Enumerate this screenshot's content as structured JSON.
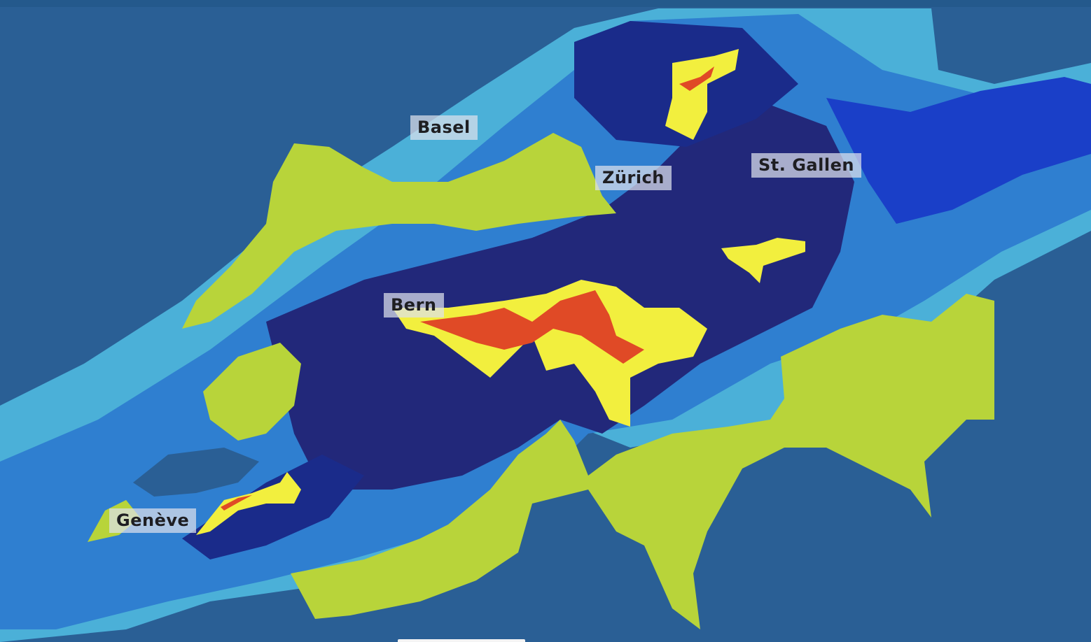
{
  "map": {
    "type": "precipitation-radar",
    "region": "Switzerland",
    "cities": [
      {
        "name": "Basel"
      },
      {
        "name": "Zürich"
      },
      {
        "name": "St. Gallen"
      },
      {
        "name": "Bern"
      },
      {
        "name": "Genève"
      }
    ],
    "colors": {
      "background_terrain": "#2a5f95",
      "no_precip_area": "#b8d43a",
      "light_blue": "#4bb0d8",
      "medium_blue": "#2f7fd0",
      "blue": "#1a3fc8",
      "dark_blue": "#22287a",
      "yellow": "#f2ef3e",
      "red": "#e04a26"
    }
  }
}
